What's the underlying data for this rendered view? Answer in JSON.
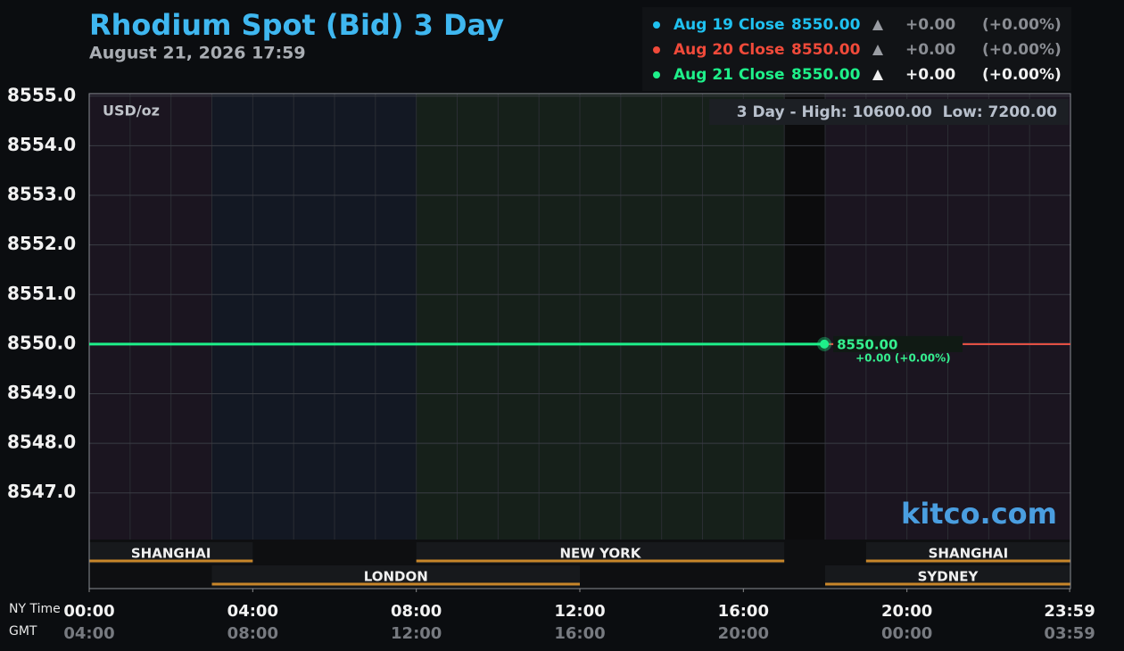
{
  "chart_data": {
    "type": "line",
    "title": "Rhodium Spot (Bid) 3 Day",
    "subtitle": "August 21, 2026 17:59",
    "y_unit": "USD/oz",
    "range_note": "3 Day - High: 10600.00  Low: 7200.00",
    "watermark": "kitco.com",
    "x_row_labels": [
      "NY Time",
      "GMT"
    ],
    "xlim": [
      0,
      24
    ],
    "xticks": [
      {
        "value": 0,
        "label": "00:00"
      },
      {
        "value": 4,
        "label": "04:00"
      },
      {
        "value": 8,
        "label": "08:00"
      },
      {
        "value": 12,
        "label": "12:00"
      },
      {
        "value": 16,
        "label": "16:00"
      },
      {
        "value": 20,
        "label": "20:00"
      },
      {
        "value": 23.98,
        "label": "23:59"
      }
    ],
    "gmt_tick_labels": [
      "04:00",
      "08:00",
      "12:00",
      "16:00",
      "20:00",
      "00:00",
      "03:59"
    ],
    "ylim": [
      8546.06,
      8555.05
    ],
    "yticks": [
      {
        "value": 8547,
        "label": "8547.0"
      },
      {
        "value": 8548,
        "label": "8548.0"
      },
      {
        "value": 8549,
        "label": "8549.0"
      },
      {
        "value": 8550,
        "label": "8550.0"
      },
      {
        "value": 8551,
        "label": "8551.0"
      },
      {
        "value": 8552,
        "label": "8552.0"
      },
      {
        "value": 8553,
        "label": "8553.0"
      },
      {
        "value": 8554,
        "label": "8554.0"
      },
      {
        "value": 8555,
        "label": "8555.0"
      }
    ],
    "grid": true,
    "series": [
      {
        "name": "Aug 19 Close",
        "color": "#1fc1f0",
        "x": [
          0,
          24
        ],
        "values": [
          8550,
          8550
        ],
        "close_label": "8550.00",
        "change": "+0.00",
        "change_pct": "(+0.00%)"
      },
      {
        "name": "Aug 20 Close",
        "color": "#f04a3a",
        "x": [
          0,
          24
        ],
        "values": [
          8550,
          8550
        ],
        "close_label": "8550.00",
        "change": "+0.00",
        "change_pct": "(+0.00%)"
      },
      {
        "name": "Aug 21 Close",
        "color": "#1ef08a",
        "x": [
          0,
          17.98
        ],
        "values": [
          8550,
          8550
        ],
        "close_label": "8550.00",
        "change": "+0.00",
        "change_pct": "(+0.00%)"
      }
    ],
    "last_point": {
      "x": 17.98,
      "value": 8550,
      "value_label": "8550.00",
      "change_label": "+0.00 (+0.00%)"
    },
    "session_bands": [
      {
        "start": 0,
        "end": 3,
        "color": "#1b1520"
      },
      {
        "start": 3,
        "end": 8,
        "color": "#131823"
      },
      {
        "start": 8,
        "end": 17,
        "color": "#16201a"
      },
      {
        "start": 17,
        "end": 18,
        "color": "#0c0c0d"
      },
      {
        "start": 18,
        "end": 24,
        "color": "#1b1520"
      }
    ],
    "sessions": [
      {
        "name": "SHANGHAI",
        "start": 0,
        "end": 4,
        "row": 1
      },
      {
        "name": "NEW YORK",
        "start": 8,
        "end": 17,
        "row": 1
      },
      {
        "name": "SHANGHAI",
        "start": 19,
        "end": 24,
        "row": 1
      },
      {
        "name": "LONDON",
        "start": 3,
        "end": 12,
        "row": 2
      },
      {
        "name": "SYDNEY",
        "start": 18,
        "end": 24,
        "row": 2
      }
    ]
  }
}
